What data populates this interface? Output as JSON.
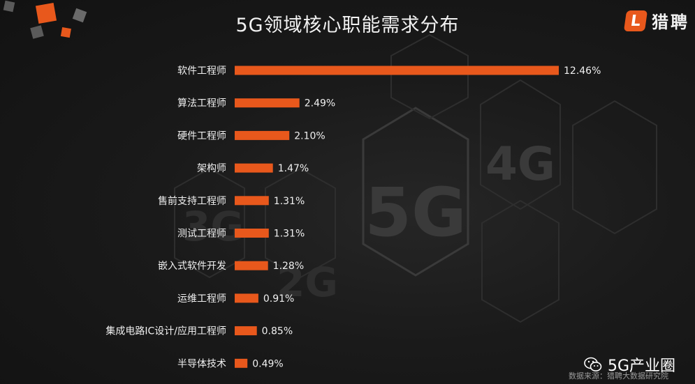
{
  "header": {
    "title": "5G领域核心职能需求分布",
    "logo_mark": "L",
    "logo_text": "猎聘"
  },
  "background": {
    "labels": [
      "5G",
      "4G",
      "3G",
      "2G"
    ]
  },
  "watermark": {
    "text": "5G产业圈",
    "source": "数据来源：猎聘大数据研究院"
  },
  "colors": {
    "bar": "#e8581c",
    "text": "#f0f0f0",
    "background": "#151515"
  },
  "chart_data": {
    "type": "bar",
    "orientation": "horizontal",
    "title": "5G领域核心职能需求分布",
    "categories": [
      "软件工程师",
      "算法工程师",
      "硬件工程师",
      "架构师",
      "售前支持工程师",
      "测试工程师",
      "嵌入式软件开发",
      "运维工程师",
      "集成电路IC设计/应用工程师",
      "半导体技术"
    ],
    "values": [
      12.46,
      2.49,
      2.1,
      1.47,
      1.31,
      1.31,
      1.28,
      0.91,
      0.85,
      0.49
    ],
    "value_labels": [
      "12.46%",
      "2.49%",
      "2.10%",
      "1.47%",
      "1.31%",
      "1.31%",
      "1.28%",
      "0.91%",
      "0.85%",
      "0.49%"
    ],
    "xlim": [
      0,
      12.46
    ],
    "grid": false,
    "legend": "none"
  }
}
